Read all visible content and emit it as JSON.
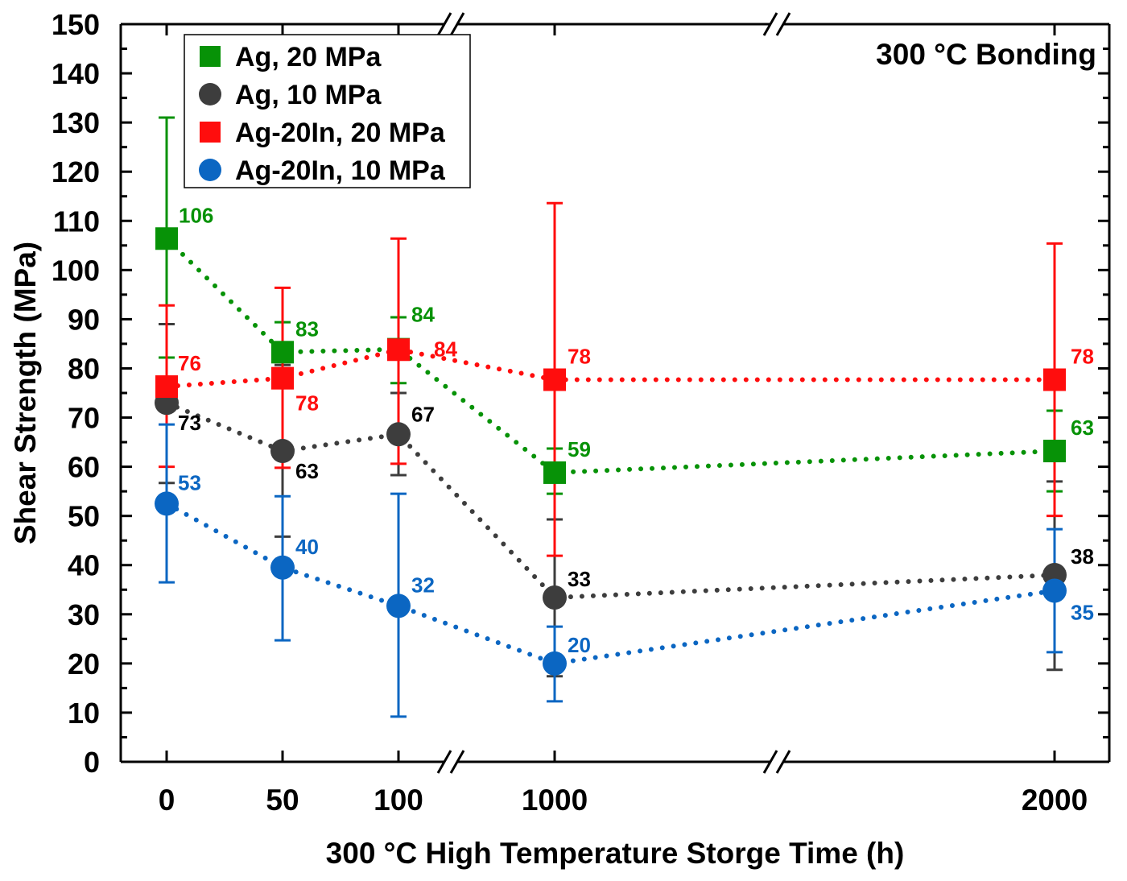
{
  "chart_data": {
    "type": "line",
    "title": "",
    "annotation": "300 °C Bonding",
    "xlabel": "300 °C High Temperature Storge Time (h)",
    "ylabel": "Shear Strength (MPa)",
    "x": [
      0,
      50,
      100,
      1000,
      2000
    ],
    "x_tick_labels": [
      "0",
      "50",
      "100",
      "1000",
      "2000"
    ],
    "x_axis_breaks": [
      "between 100 and 1000",
      "between 1000 and 2000"
    ],
    "ylim": [
      0,
      150
    ],
    "y_ticks": [
      0,
      10,
      20,
      30,
      40,
      50,
      60,
      70,
      80,
      90,
      100,
      110,
      120,
      130,
      140,
      150
    ],
    "grid": false,
    "legend_position": "top-left",
    "series": [
      {
        "name": "Ag, 20 MPa",
        "marker": "square",
        "color": "#079207",
        "values": [
          106.4,
          83.3,
          83.9,
          58.8,
          63.2
        ],
        "err_upper": [
          131,
          89.4,
          90.4,
          63.7,
          71.4
        ],
        "err_lower": [
          82.2,
          77,
          77,
          54.5,
          55
        ],
        "labels": [
          "106",
          "83",
          "84",
          "59",
          "63"
        ]
      },
      {
        "name": "Ag, 10 MPa",
        "marker": "circle",
        "color": "#3d3d3d",
        "values": [
          73,
          63.2,
          66.6,
          33.4,
          38
        ],
        "err_upper": [
          89,
          80.7,
          75,
          49.3,
          57
        ],
        "err_lower": [
          56.7,
          45.8,
          58.3,
          17.4,
          18.7
        ],
        "labels": [
          "73",
          "63",
          "67",
          "33",
          "38"
        ]
      },
      {
        "name": "Ag-20In, 20 MPa",
        "marker": "square",
        "color": "#ff0d0d",
        "values": [
          76.3,
          78,
          83.8,
          77.7,
          77.7
        ],
        "err_upper": [
          92.8,
          96.4,
          106.4,
          113.6,
          105.4
        ],
        "err_lower": [
          60,
          59.8,
          60.6,
          41.9,
          50
        ],
        "labels": [
          "76",
          "78",
          "84",
          "78",
          "78"
        ]
      },
      {
        "name": "Ag-20In, 10 MPa",
        "marker": "circle",
        "color": "#0b66c2",
        "values": [
          52.5,
          39.5,
          31.7,
          20,
          34.8
        ],
        "err_upper": [
          68.6,
          54,
          54.5,
          27.5,
          47.3
        ],
        "err_lower": [
          36.5,
          24.7,
          9.2,
          12.3,
          22.3
        ],
        "labels": [
          "53",
          "40",
          "32",
          "20",
          "35"
        ]
      }
    ]
  }
}
